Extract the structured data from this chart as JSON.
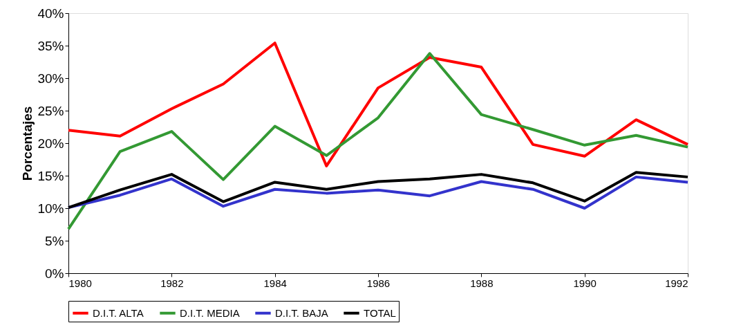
{
  "chart_data": {
    "type": "line",
    "ylabel": "Porcentajes",
    "x": [
      1980,
      1981,
      1982,
      1983,
      1984,
      1985,
      1986,
      1987,
      1988,
      1989,
      1990,
      1991,
      1992
    ],
    "series": [
      {
        "name": "D.I.T. ALTA",
        "color": "#ff0000",
        "values": [
          22.0,
          21.1,
          25.3,
          29.1,
          35.4,
          16.5,
          28.5,
          33.2,
          31.7,
          19.8,
          18.0,
          23.6,
          19.8
        ]
      },
      {
        "name": "D.I.T. MEDIA",
        "color": "#339933",
        "values": [
          6.8,
          18.7,
          21.8,
          14.4,
          22.6,
          18.1,
          23.9,
          33.8,
          24.4,
          22.1,
          19.7,
          21.2,
          19.4
        ]
      },
      {
        "name": "D.I.T. BAJA",
        "color": "#3333cc",
        "values": [
          10.1,
          12.0,
          14.5,
          10.3,
          12.9,
          12.3,
          12.8,
          11.9,
          14.1,
          12.9,
          10.0,
          14.8,
          14.0
        ]
      },
      {
        "name": "TOTAL",
        "color": "#000000",
        "values": [
          10.1,
          12.8,
          15.2,
          11.0,
          14.0,
          12.9,
          14.1,
          14.5,
          15.2,
          13.9,
          11.1,
          15.5,
          14.8
        ]
      }
    ],
    "xlim": [
      1980,
      1992
    ],
    "xticks": [
      1980,
      1982,
      1984,
      1986,
      1988,
      1990,
      1992
    ],
    "ylim": [
      0,
      40
    ],
    "yticks": [
      {
        "value": 0,
        "label": "0%"
      },
      {
        "value": 5,
        "label": "5%"
      },
      {
        "value": 10,
        "label": "10%"
      },
      {
        "value": 15,
        "label": "15%"
      },
      {
        "value": 20,
        "label": "20%"
      },
      {
        "value": 25,
        "label": "25%"
      },
      {
        "value": 30,
        "label": "30%"
      },
      {
        "value": 35,
        "label": "35%"
      },
      {
        "value": 40,
        "label": "40%"
      }
    ],
    "grid": false,
    "legend": "bottom",
    "marker": "none",
    "line_style": "solid"
  }
}
